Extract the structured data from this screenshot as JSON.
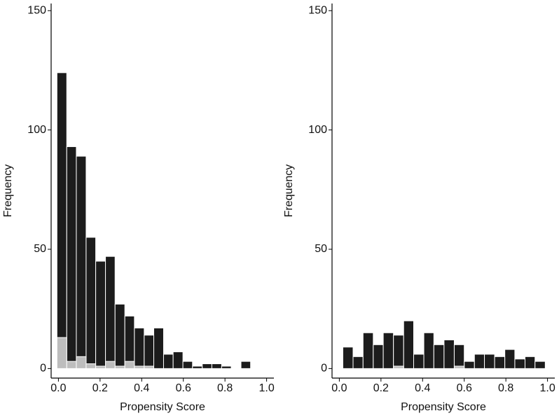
{
  "chart_data": [
    {
      "type": "histogram",
      "xlabel": "Propensity Score",
      "ylabel": "Frequency",
      "bins": [
        -0.007,
        0.04,
        0.086,
        0.133,
        0.179,
        0.226,
        0.272,
        0.319,
        0.365,
        0.412,
        0.458,
        0.505,
        0.551,
        0.598,
        0.644,
        0.691,
        0.737,
        0.784,
        0.83,
        0.877,
        0.923
      ],
      "series": [
        {
          "color": "#1c1c1c",
          "values": [
            124,
            93,
            89,
            55,
            45,
            47,
            27,
            22,
            17,
            14,
            17,
            6,
            7,
            3,
            1,
            2,
            2,
            1,
            0,
            3
          ]
        },
        {
          "color": "#bdbdbd",
          "values": [
            13,
            3,
            5,
            2,
            1,
            3,
            1,
            3,
            1,
            1,
            0,
            0,
            0,
            0,
            0,
            0,
            0,
            0,
            0,
            0
          ]
        }
      ],
      "xlim": [
        -0.035,
        1.035
      ],
      "ylim": [
        -4,
        153
      ],
      "xticks": [
        {
          "value": 0,
          "label": "0.0"
        },
        0.2,
        0.4,
        0.6,
        0.8,
        {
          "value": 1,
          "label": "1.0"
        }
      ],
      "yticks": [
        0,
        50,
        100,
        150
      ]
    },
    {
      "type": "histogram",
      "xlabel": "Propensity Score",
      "ylabel": "Frequency",
      "bins": [
        0.017,
        0.066,
        0.114,
        0.163,
        0.211,
        0.26,
        0.309,
        0.357,
        0.406,
        0.454,
        0.503,
        0.552,
        0.6,
        0.649,
        0.697,
        0.746,
        0.795,
        0.843,
        0.892,
        0.94,
        0.989
      ],
      "series": [
        {
          "color": "#1c1c1c",
          "values": [
            9,
            5,
            15,
            10,
            15,
            14,
            20,
            6,
            15,
            10,
            12,
            10,
            3,
            6,
            6,
            5,
            8,
            4,
            5,
            3
          ]
        },
        {
          "color": "#bdbdbd",
          "values": [
            0,
            0,
            0,
            0,
            0,
            1,
            0,
            0,
            0,
            0,
            0,
            1,
            0,
            0,
            0,
            0,
            0,
            0,
            0,
            0
          ]
        }
      ],
      "xlim": [
        -0.035,
        1.035
      ],
      "ylim": [
        -4,
        153
      ],
      "xticks": [
        {
          "value": 0,
          "label": "0.0"
        },
        0.2,
        0.4,
        0.6,
        0.8,
        {
          "value": 1,
          "label": "1.0"
        }
      ],
      "yticks": [
        0,
        50,
        100,
        150
      ]
    }
  ]
}
